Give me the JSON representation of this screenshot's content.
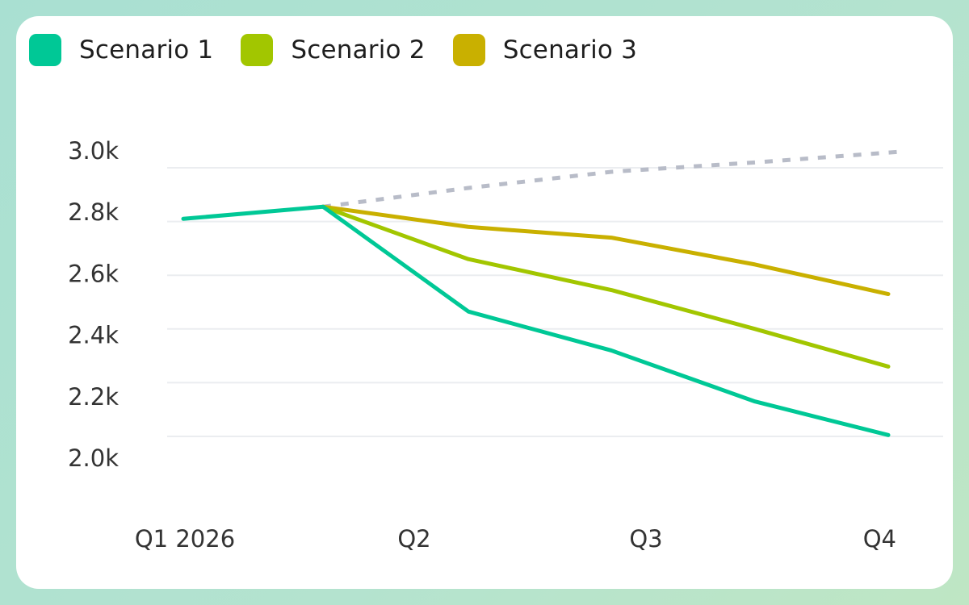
{
  "chart_data": {
    "type": "line",
    "categories": [
      "Q1 2026",
      "",
      "Q2",
      "Q3",
      "",
      "Q4"
    ],
    "x_tick_labels": [
      "Q1 2026",
      "Q2",
      "Q3",
      "Q4"
    ],
    "y_tick_labels": [
      "3.0k",
      "2.8k",
      "2.6k",
      "2.4k",
      "2.2k",
      "2.0k"
    ],
    "ylim": [
      2000,
      3000
    ],
    "grid": true,
    "legend_position": "top-left",
    "series": [
      {
        "name": "Scenario 1",
        "color": "#00c896",
        "values": [
          2810,
          2855,
          2465,
          2320,
          2130,
          2005
        ]
      },
      {
        "name": "Scenario 2",
        "color": "#a2c600",
        "values": [
          null,
          2855,
          2660,
          2545,
          2400,
          2260
        ]
      },
      {
        "name": "Scenario 3",
        "color": "#c9b000",
        "values": [
          null,
          2855,
          2780,
          2740,
          2640,
          2530
        ]
      },
      {
        "color": "#b8bcc8",
        "style": "dashed",
        "values": [
          null,
          2855,
          2925,
          2985,
          3020,
          3060
        ]
      }
    ]
  }
}
